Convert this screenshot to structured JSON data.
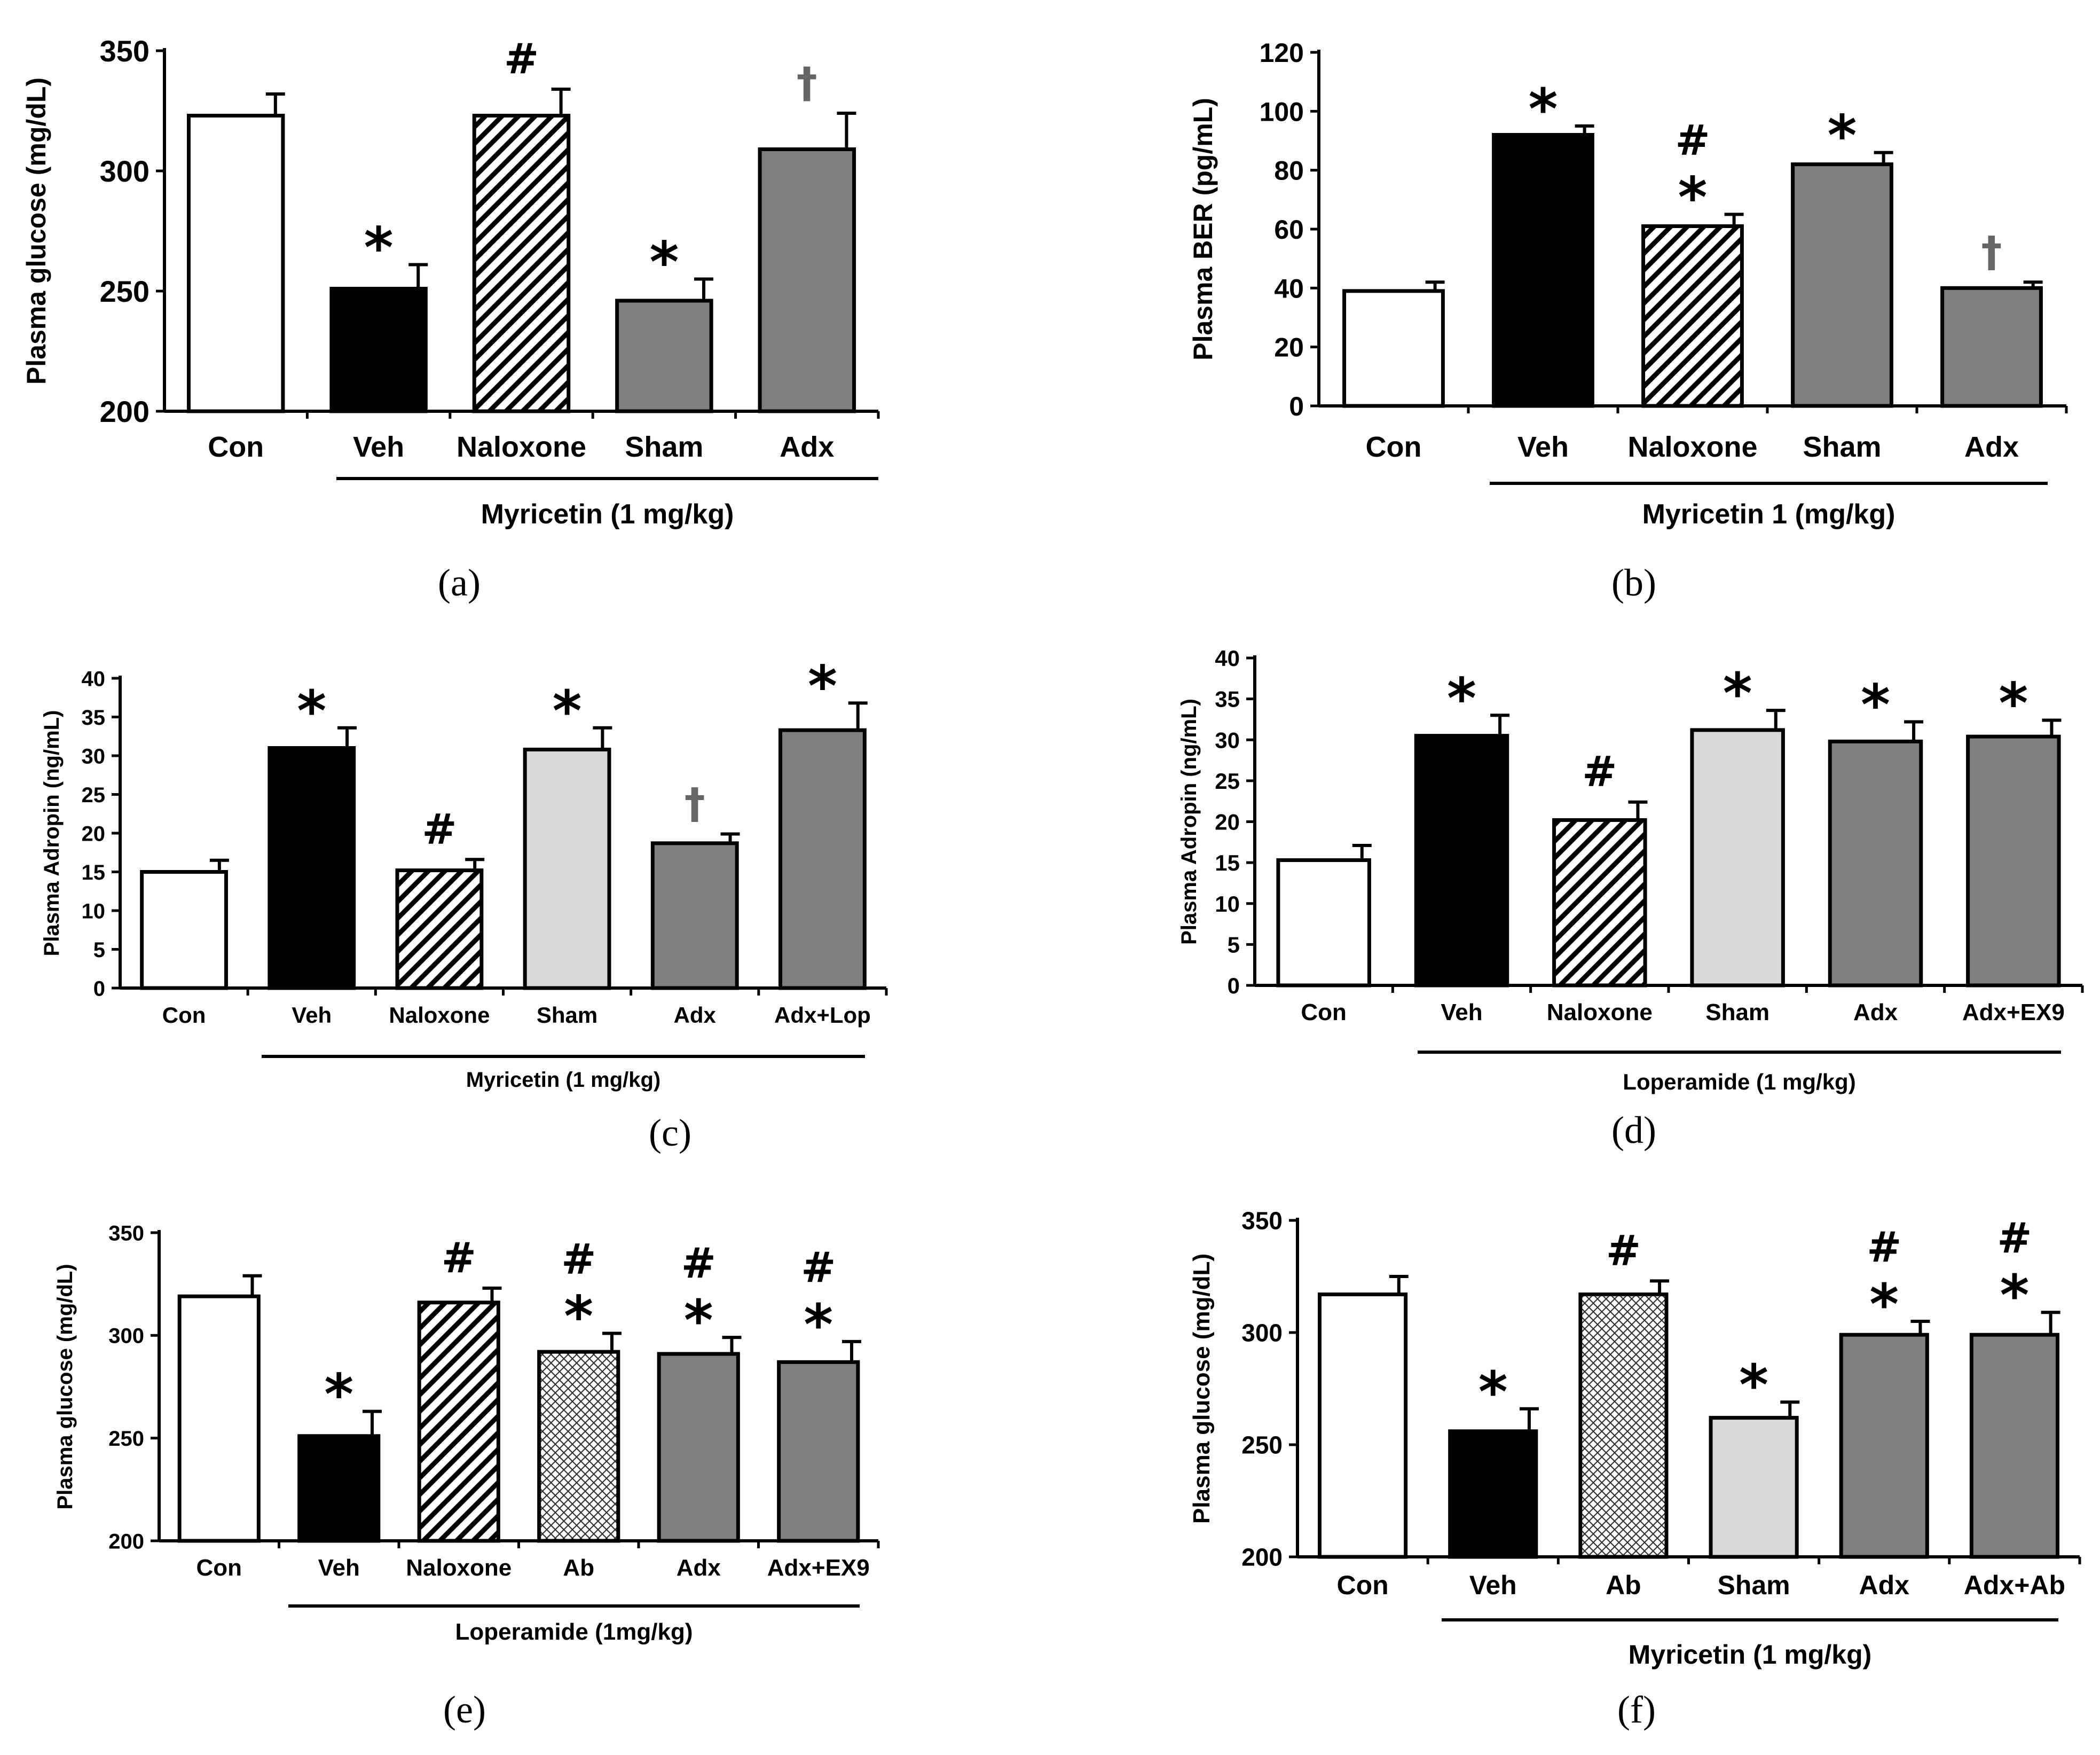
{
  "figure": {
    "colors": {
      "white": "#ffffff",
      "black": "#000000",
      "dark_gray": "#7f7f7f",
      "light_gray": "#d9d9d9",
      "dagger": "#666666"
    }
  },
  "chart_data": [
    {
      "panel": "(a)",
      "type": "bar",
      "title": "",
      "xlabel": "",
      "ylabel": "Plasma glucose (mg/dL)",
      "ylim": [
        200,
        350
      ],
      "yticks": [
        "200",
        "250",
        "300",
        "350"
      ],
      "categories": [
        "Con",
        "Veh",
        "Naloxone",
        "Sham",
        "Adx"
      ],
      "values": [
        323,
        251,
        323,
        246,
        309
      ],
      "errors": [
        9,
        10,
        11,
        9,
        15
      ],
      "fills": [
        "white",
        "black",
        "hatch",
        "dark_gray",
        "dark_gray"
      ],
      "annotations": [
        [],
        [
          "*"
        ],
        [
          "#"
        ],
        [
          "*"
        ],
        [
          "†"
        ]
      ],
      "group_label": "Myricetin (1 mg/kg)",
      "group_range": [
        1,
        4
      ]
    },
    {
      "panel": "(b)",
      "type": "bar",
      "title": "",
      "xlabel": "",
      "ylabel": "Plasma BER (pg/mL)",
      "ylim": [
        0,
        120
      ],
      "yticks": [
        "0",
        "20",
        "40",
        "60",
        "80",
        "100",
        "120"
      ],
      "categories": [
        "Con",
        "Veh",
        "Naloxone",
        "Sham",
        "Adx"
      ],
      "values": [
        39,
        92,
        61,
        82,
        40
      ],
      "errors": [
        3,
        3,
        4,
        4,
        2
      ],
      "fills": [
        "white",
        "black",
        "hatch",
        "dark_gray",
        "dark_gray"
      ],
      "annotations": [
        [],
        [
          "*"
        ],
        [
          "*",
          "#"
        ],
        [
          "*"
        ],
        [
          "†"
        ]
      ],
      "group_label": "Myricetin 1 (mg/kg)",
      "group_range": [
        1,
        4
      ]
    },
    {
      "panel": "(c)",
      "type": "bar",
      "title": "",
      "xlabel": "",
      "ylabel": "Plasma Adropin (ng/mL)",
      "ylim": [
        0,
        40
      ],
      "yticks": [
        "0",
        "5",
        "10",
        "15",
        "20",
        "25",
        "30",
        "35",
        "40"
      ],
      "categories": [
        "Con",
        "Veh",
        "Naloxone",
        "Sham",
        "Adx",
        "Adx+Lop"
      ],
      "values": [
        15,
        31,
        15.2,
        30.8,
        18.7,
        33.3
      ],
      "errors": [
        1.5,
        2.6,
        1.4,
        2.8,
        1.2,
        3.5
      ],
      "fills": [
        "white",
        "black",
        "hatch",
        "light_gray",
        "dark_gray",
        "dark_gray"
      ],
      "annotations": [
        [],
        [
          "*"
        ],
        [
          "#"
        ],
        [
          "*"
        ],
        [
          "†"
        ],
        [
          "*"
        ]
      ],
      "group_label": "Myricetin (1 mg/kg)",
      "group_range": [
        1,
        5
      ]
    },
    {
      "panel": "(d)",
      "type": "bar",
      "title": "",
      "xlabel": "",
      "ylabel": "Plasma Adropin (ng/mL)",
      "ylim": [
        0,
        40
      ],
      "yticks": [
        "0",
        "5",
        "10",
        "15",
        "20",
        "25",
        "30",
        "35",
        "40"
      ],
      "categories": [
        "Con",
        "Veh",
        "Naloxone",
        "Sham",
        "Adx",
        "Adx+EX9"
      ],
      "values": [
        15.3,
        30.5,
        20.2,
        31.2,
        29.8,
        30.4
      ],
      "errors": [
        1.8,
        2.5,
        2.2,
        2.4,
        2.4,
        2.0
      ],
      "fills": [
        "white",
        "black",
        "hatch",
        "light_gray",
        "dark_gray",
        "dark_gray"
      ],
      "annotations": [
        [],
        [
          "*"
        ],
        [
          "#"
        ],
        [
          "*"
        ],
        [
          "*"
        ],
        [
          "*"
        ]
      ],
      "group_label": "Loperamide (1 mg/kg)",
      "group_range": [
        1,
        5
      ]
    },
    {
      "panel": "(e)",
      "type": "bar",
      "title": "",
      "xlabel": "",
      "ylabel": "Plasma glucose (mg/dL)",
      "ylim": [
        200,
        350
      ],
      "yticks": [
        "200",
        "250",
        "300",
        "350"
      ],
      "categories": [
        "Con",
        "Veh",
        "Naloxone",
        "Ab",
        "Adx",
        "Adx+EX9"
      ],
      "values": [
        319,
        251,
        316,
        292,
        291,
        287
      ],
      "errors": [
        10,
        12,
        7,
        9,
        8,
        10
      ],
      "fills": [
        "white",
        "black",
        "hatch",
        "crosshatch",
        "dark_gray",
        "dark_gray"
      ],
      "annotations": [
        [],
        [
          "*"
        ],
        [
          "#"
        ],
        [
          "*",
          "#"
        ],
        [
          "*",
          "#"
        ],
        [
          "*",
          "#"
        ]
      ],
      "group_label": "Loperamide (1mg/kg)",
      "group_range": [
        1,
        5
      ]
    },
    {
      "panel": "(f)",
      "type": "bar",
      "title": "",
      "xlabel": "",
      "ylabel": "Plasma glucose (mg/dL)",
      "ylim": [
        200,
        350
      ],
      "yticks": [
        "200",
        "250",
        "300",
        "350"
      ],
      "categories": [
        "Con",
        "Veh",
        "Ab",
        "Sham",
        "Adx",
        "Adx+Ab"
      ],
      "values": [
        317,
        256,
        317,
        262,
        299,
        299
      ],
      "errors": [
        8,
        10,
        6,
        7,
        6,
        10
      ],
      "fills": [
        "white",
        "black",
        "crosshatch",
        "light_gray",
        "dark_gray",
        "dark_gray"
      ],
      "annotations": [
        [],
        [
          "*"
        ],
        [
          "#"
        ],
        [
          "*"
        ],
        [
          "*",
          "#"
        ],
        [
          "*",
          "#"
        ]
      ],
      "group_label": "Myricetin (1 mg/kg)",
      "group_range": [
        1,
        5
      ]
    }
  ]
}
